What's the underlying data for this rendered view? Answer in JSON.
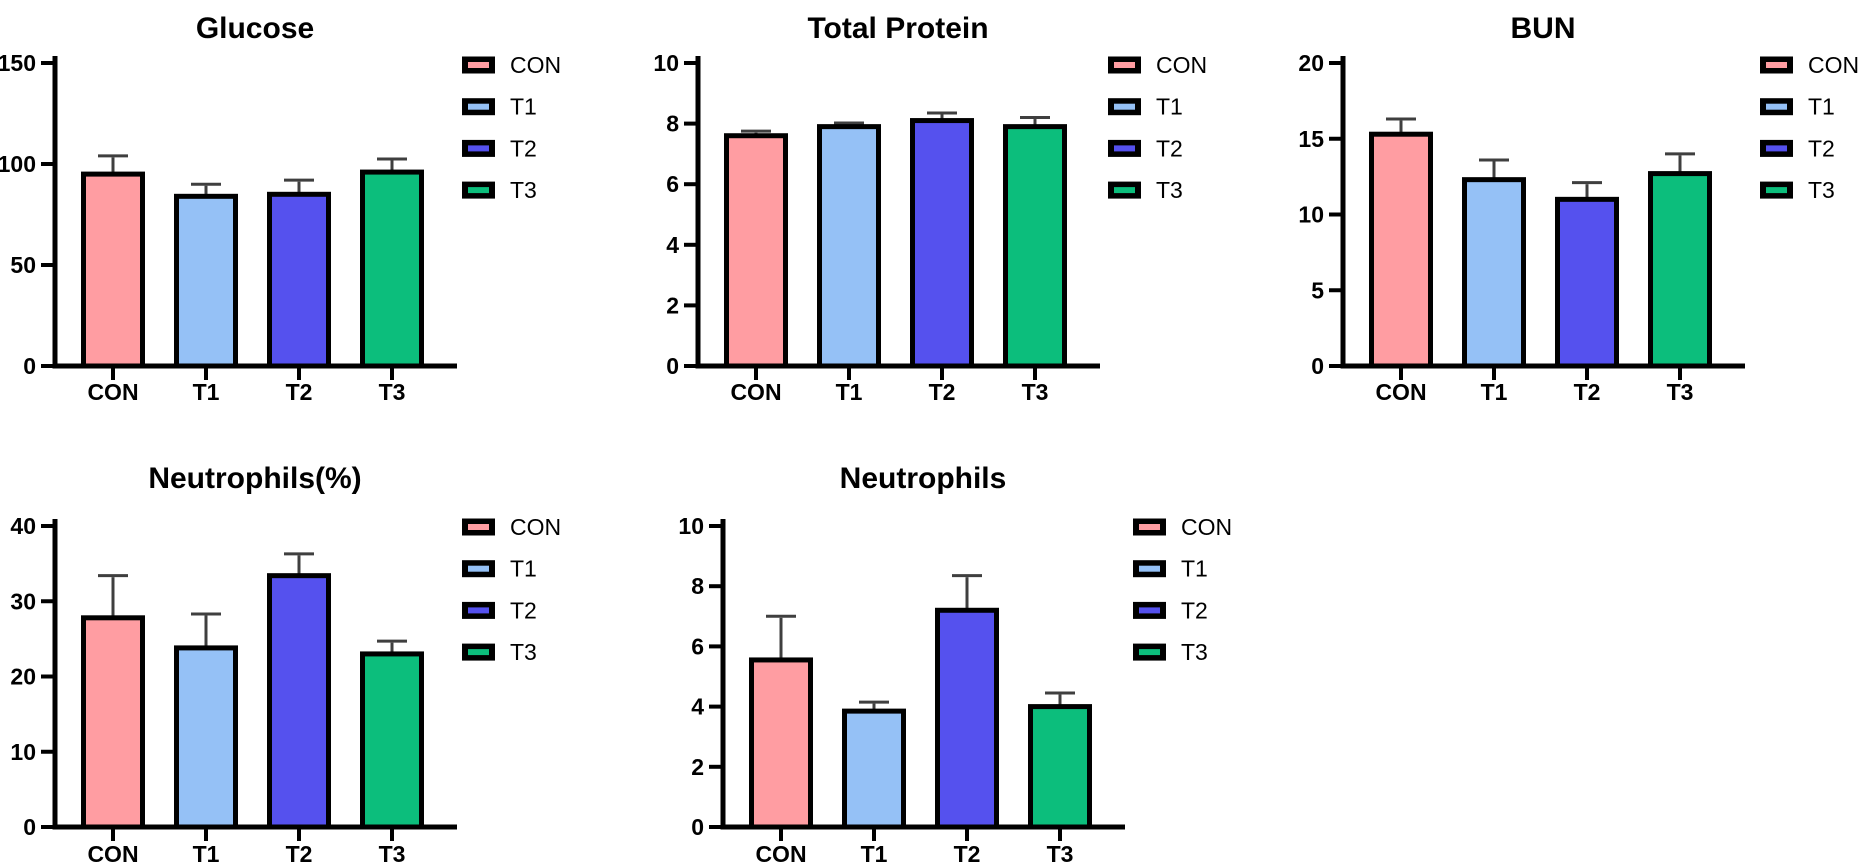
{
  "figure": {
    "background_color": "#ffffff",
    "text_color": "#000000",
    "axis_color": "#000000",
    "bar_border_color": "#000000",
    "error_bar_color": "#3f3f3f",
    "group_colors": {
      "CON": "#ff9da2",
      "T1": "#95c1f6",
      "T2": "#5551ee",
      "T3": "#0cbe7c"
    },
    "legend_labels": [
      "CON",
      "T1",
      "T2",
      "T3"
    ]
  },
  "chart_data": [
    {
      "type": "bar",
      "title": "Glucose",
      "categories": [
        "CON",
        "T1",
        "T2",
        "T3"
      ],
      "values": [
        95,
        84,
        85,
        96
      ],
      "errors_plus": [
        9,
        6,
        7,
        6.5
      ],
      "ylim": [
        0,
        150
      ],
      "yticks": [
        0,
        50,
        100,
        150
      ],
      "xlabel": "",
      "ylabel": "",
      "grid": false,
      "legend": [
        "CON",
        "T1",
        "T2",
        "T3"
      ],
      "legend_position": "right"
    },
    {
      "type": "bar",
      "title": "Total Protein",
      "categories": [
        "CON",
        "T1",
        "T2",
        "T3"
      ],
      "values": [
        7.6,
        7.9,
        8.1,
        7.9
      ],
      "errors_plus": [
        0.15,
        0.12,
        0.25,
        0.3
      ],
      "ylim": [
        0,
        10
      ],
      "yticks": [
        0,
        2,
        4,
        6,
        8,
        10
      ],
      "xlabel": "",
      "ylabel": "",
      "grid": false,
      "legend": [
        "CON",
        "T1",
        "T2",
        "T3"
      ],
      "legend_position": "right"
    },
    {
      "type": "bar",
      "title": "BUN",
      "categories": [
        "CON",
        "T1",
        "T2",
        "T3"
      ],
      "values": [
        15.3,
        12.3,
        11.0,
        12.7
      ],
      "errors_plus": [
        1.0,
        1.3,
        1.1,
        1.3
      ],
      "ylim": [
        0,
        20
      ],
      "yticks": [
        0,
        5,
        10,
        15,
        20
      ],
      "xlabel": "",
      "ylabel": "",
      "grid": false,
      "legend": [
        "CON",
        "T1",
        "T2",
        "T3"
      ],
      "legend_position": "right"
    },
    {
      "type": "bar",
      "title": "Neutrophils(%)",
      "categories": [
        "CON",
        "T1",
        "T2",
        "T3"
      ],
      "values": [
        27.8,
        23.8,
        33.4,
        23.0
      ],
      "errors_plus": [
        5.6,
        4.5,
        2.9,
        1.7
      ],
      "ylim": [
        0,
        40
      ],
      "yticks": [
        0,
        10,
        20,
        30,
        40
      ],
      "xlabel": "",
      "ylabel": "",
      "grid": false,
      "legend": [
        "CON",
        "T1",
        "T2",
        "T3"
      ],
      "legend_position": "right"
    },
    {
      "type": "bar",
      "title": "Neutrophils",
      "categories": [
        "CON",
        "T1",
        "T2",
        "T3"
      ],
      "values": [
        5.55,
        3.85,
        7.2,
        4.0
      ],
      "errors_plus": [
        1.45,
        0.3,
        1.15,
        0.45
      ],
      "ylim": [
        0,
        10
      ],
      "yticks": [
        0,
        2,
        4,
        6,
        8,
        10
      ],
      "xlabel": "",
      "ylabel": "",
      "grid": false,
      "legend": [
        "CON",
        "T1",
        "T2",
        "T3"
      ],
      "legend_position": "right"
    }
  ]
}
